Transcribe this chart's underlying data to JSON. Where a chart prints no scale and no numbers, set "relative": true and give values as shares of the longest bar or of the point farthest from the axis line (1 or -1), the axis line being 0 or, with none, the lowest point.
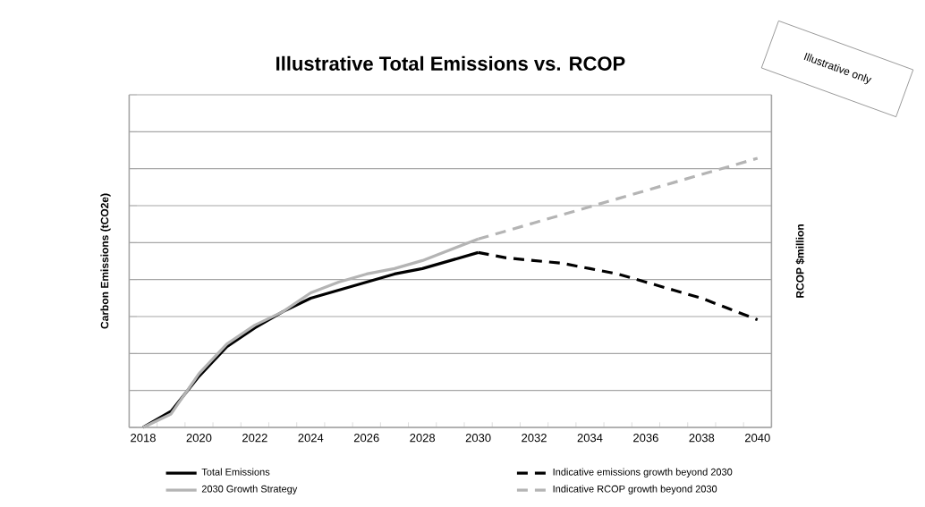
{
  "chart_data": {
    "type": "line",
    "title": "Illustrative Total Emissions vs. RCOP",
    "ylabel": "Carbon Emissions (tCO2e)",
    "y2label": "RCOP $million",
    "annotations": [
      "Illustrative only"
    ],
    "categories": [
      "2018",
      null,
      "2020",
      null,
      "2022",
      null,
      "2024",
      null,
      "2026",
      null,
      "2028",
      null,
      "2030",
      null,
      "2032",
      null,
      "2034",
      null,
      "2036",
      null,
      "2038",
      null,
      "2040"
    ],
    "relative": true,
    "grid": "y",
    "legend": "bottom",
    "series": [
      {
        "name": "Total Emissions",
        "color": "#000000",
        "line_style": "solid",
        "values": [
          0,
          0.06,
          0.19,
          0.3,
          0.37,
          0.43,
          0.48,
          0.51,
          0.54,
          0.57,
          0.59,
          0.62,
          0.65,
          null,
          null,
          null,
          null,
          null,
          null,
          null,
          null,
          null,
          null
        ]
      },
      {
        "name": "Indicative emissions growth beyond 2030",
        "color": "#000000",
        "line_style": "dashed",
        "values": [
          null,
          null,
          null,
          null,
          null,
          null,
          null,
          null,
          null,
          null,
          null,
          null,
          0.65,
          0.63,
          0.62,
          0.61,
          0.59,
          0.57,
          0.54,
          0.51,
          0.48,
          0.44,
          0.4
        ]
      },
      {
        "name": "2030 Growth Strategy",
        "color": "#b4b4b4",
        "line_style": "solid",
        "values": [
          0,
          0.05,
          0.2,
          0.31,
          0.38,
          0.43,
          0.5,
          0.54,
          0.57,
          0.59,
          0.62,
          0.66,
          0.7,
          null,
          null,
          null,
          null,
          null,
          null,
          null,
          null,
          null,
          null
        ]
      },
      {
        "name": "Indicative RCOP growth beyond 2030",
        "color": "#b4b4b4",
        "line_style": "dashed",
        "values": [
          null,
          null,
          null,
          null,
          null,
          null,
          null,
          null,
          null,
          null,
          null,
          null,
          0.7,
          0.73,
          0.76,
          0.79,
          0.82,
          0.85,
          0.88,
          0.91,
          0.94,
          0.97,
          1.0
        ]
      }
    ]
  }
}
